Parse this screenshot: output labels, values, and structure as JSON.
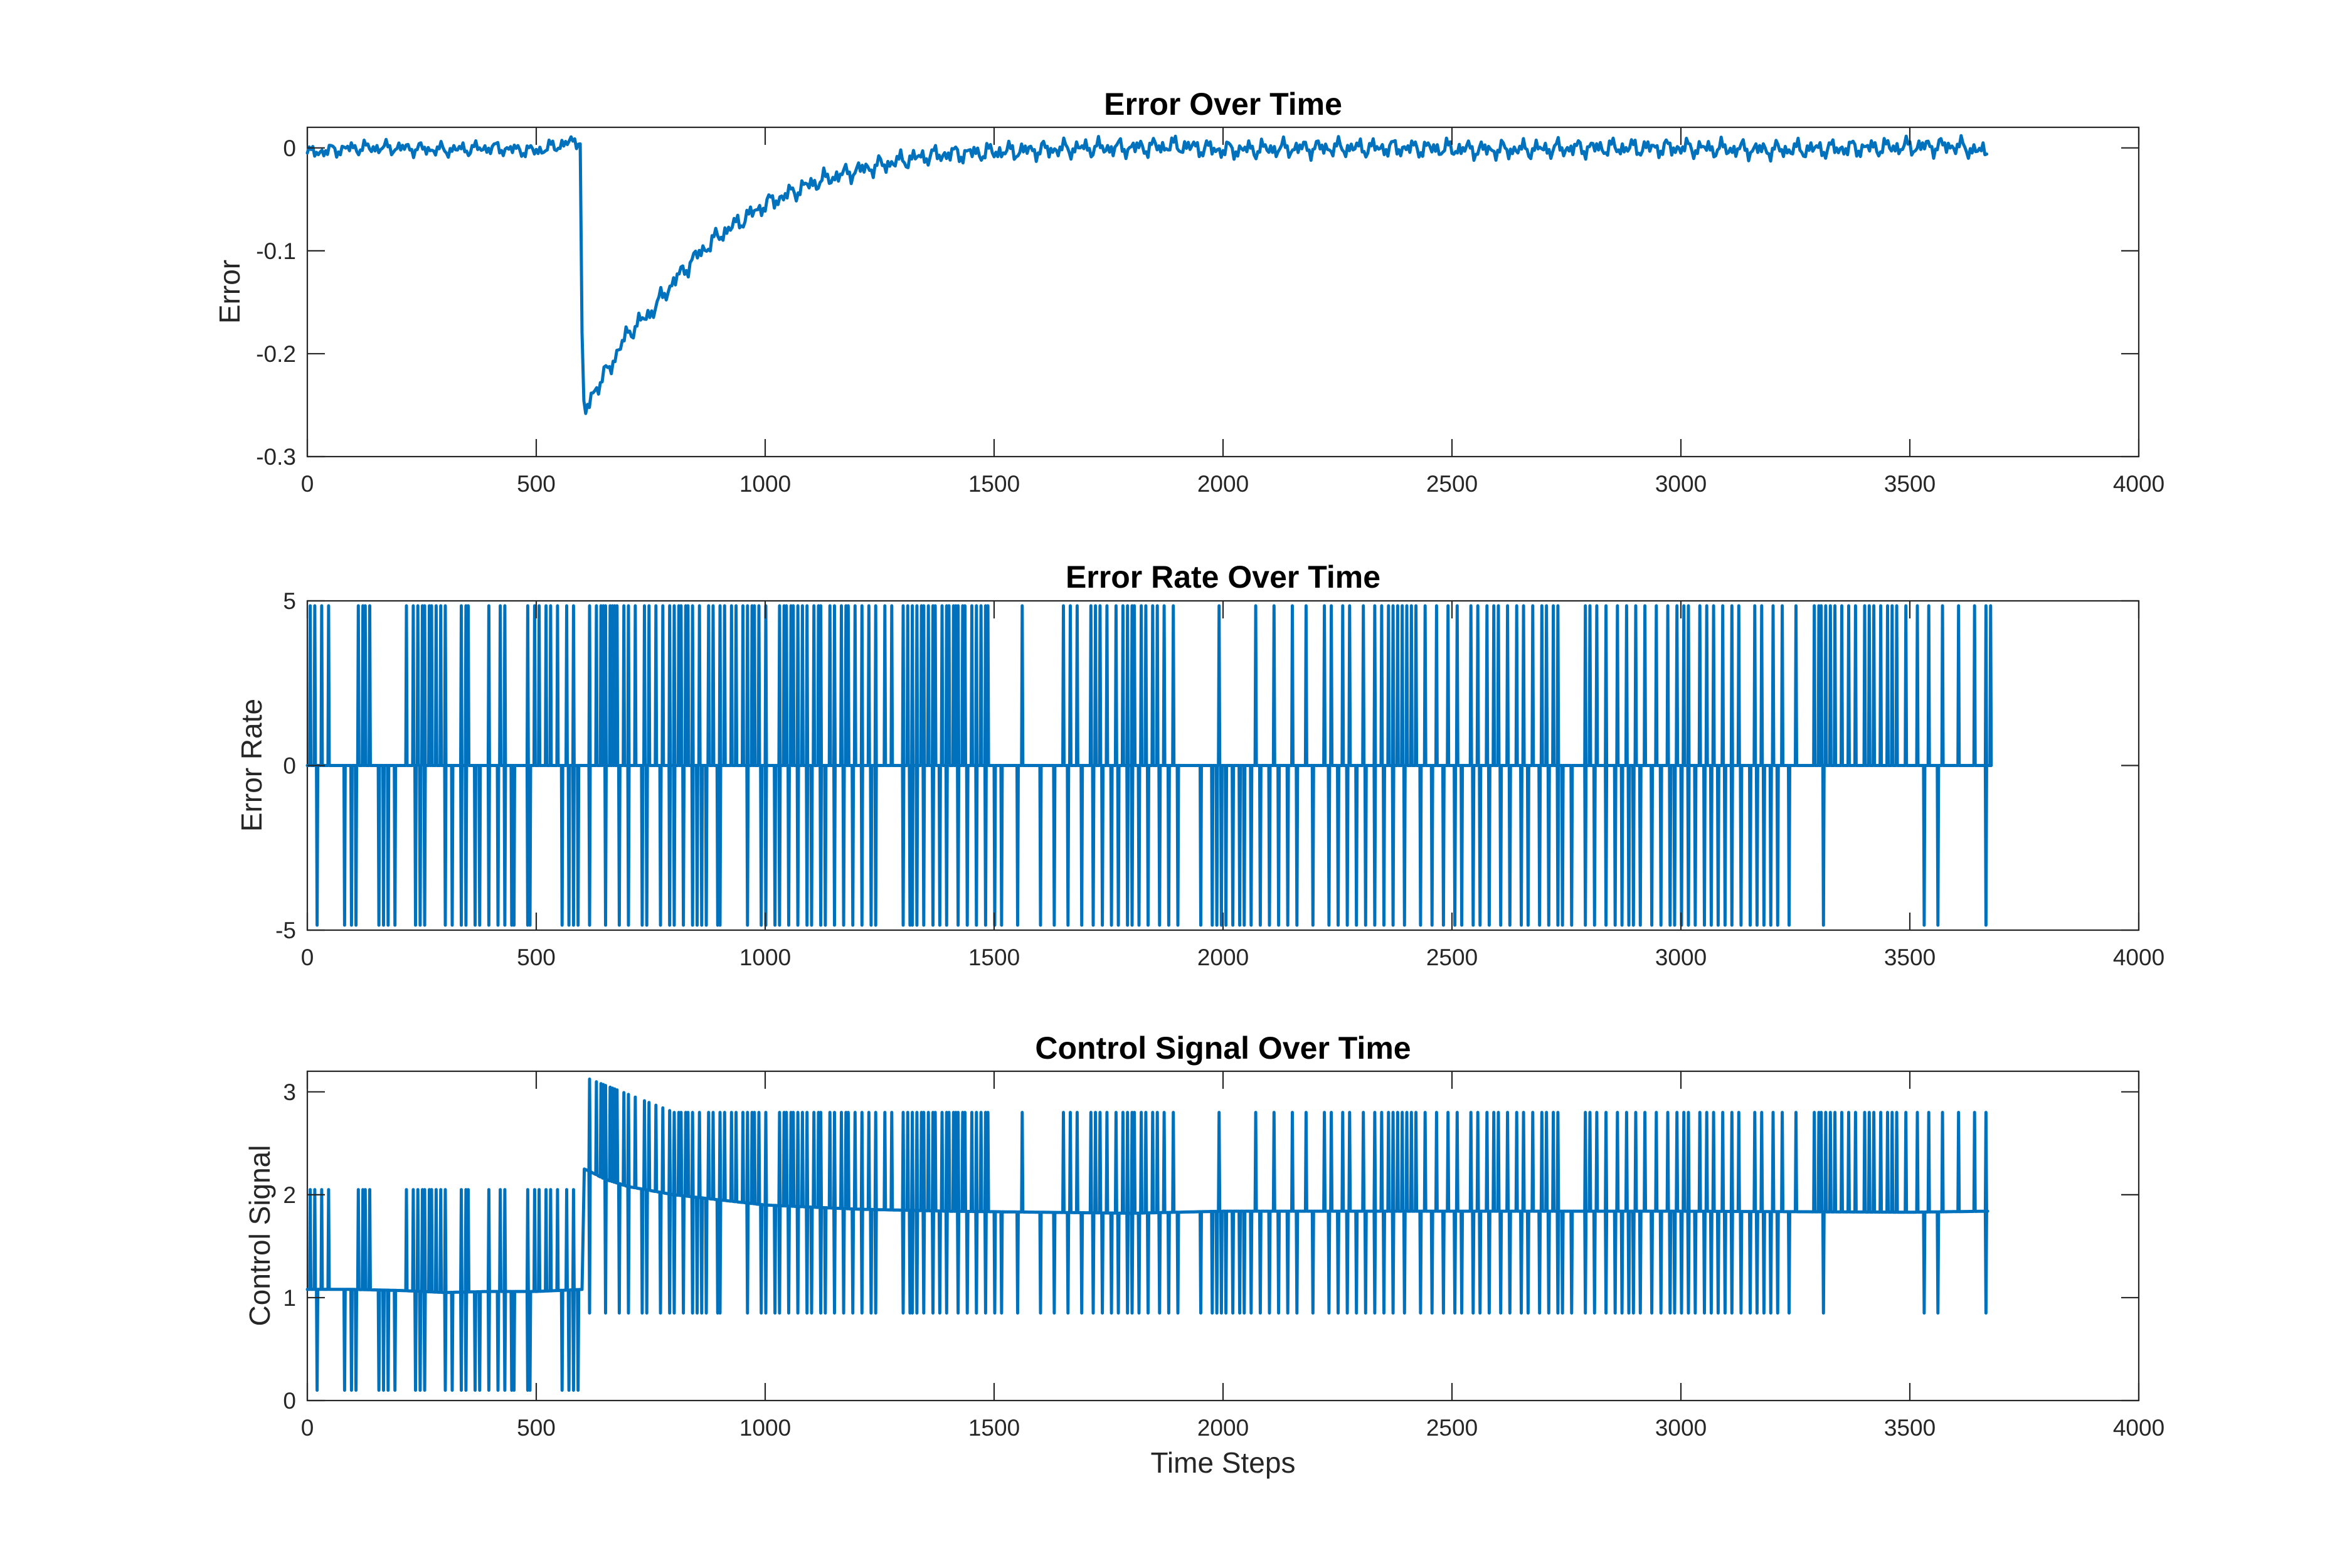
{
  "chart_data": [
    {
      "type": "line",
      "title": "Error Over Time",
      "xlabel": "",
      "ylabel": "Error",
      "xlim": [
        0,
        4000
      ],
      "ylim": [
        -0.3,
        0.02
      ],
      "xticks": [
        0,
        500,
        1000,
        1500,
        2000,
        2500,
        3000,
        3500,
        4000
      ],
      "yticks": [
        -0.3,
        -0.2,
        -0.1,
        0
      ],
      "xtick_labels": [
        "0",
        "500",
        "1000",
        "1500",
        "2000",
        "2500",
        "3000",
        "3500",
        "4000"
      ],
      "ytick_labels": [
        "-0.3",
        "-0.2",
        "-0.1",
        "0"
      ],
      "grid": false,
      "color": "#0072BD",
      "x": [
        0,
        100,
        200,
        300,
        400,
        500,
        598,
        600,
        605,
        610,
        620,
        640,
        670,
        700,
        750,
        800,
        850,
        900,
        950,
        1000,
        1050,
        1100,
        1150,
        1200,
        1250,
        1300,
        1350,
        1400,
        1500,
        1600,
        1700,
        1800,
        1900,
        2000,
        2200,
        2400,
        2600,
        2800,
        3000,
        3200,
        3400,
        3600,
        3670
      ],
      "y": [
        -0.005,
        0.0,
        0.0,
        -0.002,
        0.0,
        -0.003,
        0.008,
        -0.18,
        -0.262,
        -0.258,
        -0.24,
        -0.228,
        -0.205,
        -0.18,
        -0.16,
        -0.13,
        -0.105,
        -0.085,
        -0.07,
        -0.055,
        -0.045,
        -0.035,
        -0.028,
        -0.022,
        -0.017,
        -0.012,
        -0.008,
        -0.006,
        -0.004,
        -0.002,
        0.0,
        0.0,
        0.002,
        -0.002,
        0.0,
        0.0,
        -0.002,
        0.0,
        0.0,
        -0.002,
        0.0,
        0.002,
        -0.005
      ]
    },
    {
      "type": "line",
      "title": "Error Rate Over Time",
      "xlabel": "",
      "ylabel": "Error Rate",
      "xlim": [
        0,
        4000
      ],
      "ylim": [
        -5,
        5
      ],
      "xticks": [
        0,
        500,
        1000,
        1500,
        2000,
        2500,
        3000,
        3500,
        4000
      ],
      "yticks": [
        -5,
        0,
        5
      ],
      "xtick_labels": [
        "0",
        "500",
        "1000",
        "1500",
        "2000",
        "2500",
        "3000",
        "3500",
        "4000"
      ],
      "ytick_labels": [
        "-5",
        "0",
        "5"
      ],
      "grid": false,
      "color": "#0072BD",
      "spikes_positive": [
        5,
        15,
        30,
        45,
        110,
        120,
        125,
        135,
        215,
        230,
        240,
        250,
        255,
        265,
        270,
        280,
        290,
        300,
        335,
        345,
        350,
        395,
        420,
        430,
        480,
        495,
        505,
        520,
        530,
        545,
        565,
        580,
        615,
        630,
        640,
        645,
        650,
        660,
        665,
        670,
        675,
        690,
        700,
        715,
        735,
        745,
        760,
        775,
        790,
        800,
        810,
        815,
        825,
        830,
        840,
        855,
        875,
        885,
        900,
        910,
        925,
        935,
        950,
        960,
        970,
        975,
        985,
        1000,
        1030,
        1040,
        1045,
        1055,
        1060,
        1070,
        1080,
        1090,
        1105,
        1115,
        1120,
        1140,
        1150,
        1165,
        1175,
        1180,
        1195,
        1210,
        1225,
        1240,
        1260,
        1275,
        1300,
        1310,
        1320,
        1330,
        1340,
        1345,
        1355,
        1365,
        1370,
        1385,
        1395,
        1400,
        1410,
        1415,
        1420,
        1430,
        1435,
        1450,
        1460,
        1470,
        1480,
        1485,
        1560,
        1650,
        1665,
        1680,
        1710,
        1720,
        1730,
        1745,
        1765,
        1780,
        1790,
        1800,
        1805,
        1820,
        1830,
        1845,
        1855,
        1870,
        1890,
        1990,
        2070,
        2110,
        2150,
        2180,
        2220,
        2235,
        2260,
        2275,
        2305,
        2330,
        2345,
        2360,
        2370,
        2380,
        2390,
        2400,
        2410,
        2420,
        2440,
        2465,
        2490,
        2510,
        2540,
        2555,
        2575,
        2590,
        2600,
        2620,
        2640,
        2655,
        2675,
        2695,
        2705,
        2720,
        2730,
        2790,
        2800,
        2815,
        2835,
        2860,
        2880,
        2900,
        2920,
        2945,
        2970,
        2990,
        3005,
        3015,
        3040,
        3055,
        3070,
        3090,
        3110,
        3125,
        3160,
        3175,
        3200,
        3220,
        3250,
        3290,
        3300,
        3305,
        3315,
        3325,
        3335,
        3350,
        3365,
        3380,
        3400,
        3410,
        3420,
        3435,
        3450,
        3460,
        3470,
        3490,
        3515,
        3540,
        3570,
        3605,
        3640,
        3665,
        3675
      ],
      "spikes_negative": [
        20,
        80,
        95,
        105,
        155,
        165,
        175,
        190,
        235,
        245,
        255,
        300,
        315,
        335,
        345,
        365,
        375,
        395,
        415,
        430,
        445,
        450,
        480,
        485,
        555,
        570,
        580,
        590,
        615,
        650,
        680,
        700,
        730,
        740,
        770,
        790,
        800,
        820,
        840,
        850,
        860,
        870,
        895,
        900,
        960,
        990,
        1000,
        1020,
        1030,
        1050,
        1070,
        1090,
        1100,
        1120,
        1130,
        1150,
        1170,
        1190,
        1210,
        1230,
        1240,
        1300,
        1315,
        1320,
        1330,
        1345,
        1365,
        1380,
        1395,
        1420,
        1440,
        1460,
        1480,
        1500,
        1515,
        1550,
        1600,
        1630,
        1660,
        1690,
        1715,
        1735,
        1755,
        1770,
        1790,
        1800,
        1815,
        1835,
        1860,
        1880,
        1900,
        1950,
        1975,
        1985,
        1995,
        2005,
        2020,
        2035,
        2045,
        2060,
        2080,
        2100,
        2120,
        2140,
        2160,
        2195,
        2230,
        2250,
        2270,
        2290,
        2310,
        2330,
        2350,
        2370,
        2395,
        2430,
        2455,
        2480,
        2505,
        2520,
        2545,
        2560,
        2580,
        2605,
        2625,
        2650,
        2665,
        2690,
        2710,
        2730,
        2740,
        2760,
        2790,
        2810,
        2835,
        2855,
        2870,
        2885,
        2895,
        2910,
        2935,
        2955,
        2975,
        2985,
        3000,
        3015,
        3030,
        3050,
        3065,
        3080,
        3095,
        3110,
        3130,
        3150,
        3165,
        3180,
        3195,
        3210,
        3235,
        3310,
        3530,
        3560,
        3665
      ]
    },
    {
      "type": "line",
      "title": "Control Signal Over Time",
      "xlabel": "Time Steps",
      "ylabel": "Control Signal",
      "xlim": [
        0,
        4000
      ],
      "ylim": [
        0,
        3.2
      ],
      "xticks": [
        0,
        500,
        1000,
        1500,
        2000,
        2500,
        3000,
        3500,
        4000
      ],
      "yticks": [
        0,
        1,
        2,
        3
      ],
      "xtick_labels": [
        "0",
        "500",
        "1000",
        "1500",
        "2000",
        "2500",
        "3000",
        "3500",
        "4000"
      ],
      "ytick_labels": [
        "0",
        "1",
        "2",
        "3"
      ],
      "grid": false,
      "color": "#0072BD",
      "baseline_x": [
        0,
        100,
        200,
        300,
        400,
        500,
        600,
        605,
        620,
        650,
        700,
        800,
        900,
        1000,
        1200,
        1400,
        1600,
        1800,
        2000,
        2500,
        3000,
        3500,
        3670
      ],
      "baseline_y": [
        1.08,
        1.08,
        1.07,
        1.05,
        1.06,
        1.06,
        1.08,
        2.25,
        2.22,
        2.15,
        2.08,
        2.0,
        1.95,
        1.9,
        1.86,
        1.84,
        1.83,
        1.82,
        1.84,
        1.84,
        1.84,
        1.83,
        1.84
      ],
      "spike_model": "pulses above and below the baseline at the error-rate switching times; before step 600 up to 2.05 / down to 0.1, after step 600 up to about 2.8-3.2 / down to about 0.85"
    }
  ]
}
